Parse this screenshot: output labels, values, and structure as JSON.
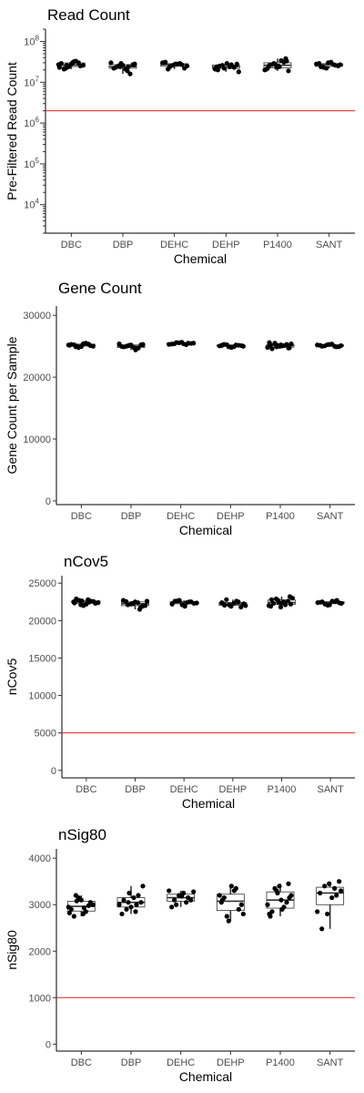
{
  "chart_data": [
    {
      "type": "boxplot",
      "title": "Read Count",
      "xlabel": "Chemical",
      "ylabel": "Pre-Filtered Read Count",
      "yscale": "log10",
      "ylim": [
        2000,
        200000000
      ],
      "yticks": [
        10000,
        100000,
        1000000,
        10000000,
        100000000
      ],
      "ytick_labels": [
        {
          "base": "10",
          "exp": "4"
        },
        {
          "base": "10",
          "exp": "5"
        },
        {
          "base": "10",
          "exp": "6"
        },
        {
          "base": "10",
          "exp": "7"
        },
        {
          "base": "10",
          "exp": "8"
        }
      ],
      "reference_line": 2000000,
      "reference_color": "#e0241b",
      "categories": [
        "DBC",
        "DBP",
        "DEHC",
        "DEHP",
        "P1400",
        "SANT"
      ],
      "values": [
        [
          27000000,
          22000000,
          31000000,
          25000000,
          29000000,
          24000000,
          33000000,
          26000000,
          21000000,
          28000000,
          30000000,
          23000000,
          26000000,
          32000000
        ],
        [
          24000000,
          19000000,
          28000000,
          23000000,
          26000000,
          16000000,
          30000000,
          25000000,
          21000000,
          27000000,
          22000000,
          29000000,
          24000000
        ],
        [
          27000000,
          30000000,
          24000000,
          28000000,
          22000000,
          31000000,
          26000000,
          29000000,
          25000000,
          21000000,
          28000000
        ],
        [
          24000000,
          22000000,
          27000000,
          18000000,
          25000000,
          29000000,
          23000000,
          21000000,
          26000000,
          24000000,
          28000000,
          20000000
        ],
        [
          25000000,
          38000000,
          21000000,
          29000000,
          34000000,
          19000000,
          26000000,
          23000000,
          31000000,
          20000000,
          27000000,
          24000000,
          33000000,
          22000000,
          28000000
        ],
        [
          27000000,
          24000000,
          30000000,
          26000000,
          28000000,
          23000000,
          31000000,
          25000000,
          29000000,
          22000000,
          27000000
        ]
      ]
    },
    {
      "type": "boxplot",
      "title": "Gene Count",
      "xlabel": "Chemical",
      "ylabel": "Gene Count per Sample",
      "ylim": [
        -600,
        31500
      ],
      "yticks": [
        0,
        10000,
        20000,
        30000
      ],
      "categories": [
        "DBC",
        "DBP",
        "DEHC",
        "DEHP",
        "P1400",
        "SANT"
      ],
      "values": [
        [
          25200,
          24900,
          25400,
          25100,
          25300,
          24800,
          25500,
          25000,
          25250,
          24950,
          25350,
          25150,
          25050,
          25450
        ],
        [
          25100,
          24400,
          25300,
          24900,
          25200,
          24700,
          25400,
          25000,
          24800,
          25250,
          24950,
          25150,
          24600
        ],
        [
          25500,
          25300,
          25600,
          25400,
          25450,
          25350,
          25550,
          25250,
          25500,
          25400,
          25650
        ],
        [
          25100,
          24900,
          25200,
          25000,
          25300,
          24800,
          25150,
          25050,
          25250,
          24950,
          25100,
          25200
        ],
        [
          25200,
          24700,
          25600,
          24900,
          25100,
          25400,
          24600,
          25000,
          25300,
          24800,
          25500,
          25050,
          24750,
          25250,
          25150
        ],
        [
          25100,
          25000,
          25300,
          24900,
          25200,
          25050,
          25350,
          24950,
          25150,
          25250,
          25000
        ]
      ]
    },
    {
      "type": "boxplot",
      "title": "nCov5",
      "xlabel": "Chemical",
      "ylabel": "nCov5",
      "ylim": [
        -1000,
        26000
      ],
      "yticks": [
        0,
        5000,
        10000,
        15000,
        20000,
        25000
      ],
      "reference_line": 5000,
      "reference_color": "#e0241b",
      "categories": [
        "DBC",
        "DBP",
        "DEHC",
        "DEHP",
        "P1400",
        "SANT"
      ],
      "values": [
        [
          22500,
          22100,
          22800,
          22300,
          22900,
          22000,
          22600,
          22400,
          22700,
          22200,
          22550,
          22350,
          22650,
          22450
        ],
        [
          22300,
          21500,
          22600,
          22100,
          22500,
          21900,
          22700,
          22200,
          22400,
          22000,
          22550,
          22250,
          21800
        ],
        [
          22500,
          22200,
          22700,
          22400,
          22300,
          22600,
          22100,
          22500,
          22350,
          22650,
          21900
        ],
        [
          22200,
          21900,
          22500,
          22000,
          22800,
          22300,
          21800,
          22400,
          22100,
          22600,
          22250,
          22050
        ],
        [
          22400,
          23200,
          21900,
          22700,
          22100,
          23000,
          22300,
          21800,
          22600,
          22000,
          22900,
          22500,
          22200,
          22800,
          22400
        ],
        [
          22300,
          22500,
          22100,
          22700,
          22400,
          22200,
          22600,
          22350,
          22450,
          22050,
          22550
        ]
      ]
    },
    {
      "type": "boxplot",
      "title": "nSig80",
      "xlabel": "Chemical",
      "ylabel": "nSig80",
      "ylim": [
        -150,
        4200
      ],
      "yticks": [
        0,
        1000,
        2000,
        3000,
        4000
      ],
      "reference_line": 1000,
      "reference_color": "#e0241b",
      "categories": [
        "DBC",
        "DBP",
        "DEHC",
        "DEHP",
        "P1400",
        "SANT"
      ],
      "values": [
        [
          2950,
          3200,
          2800,
          3050,
          2900,
          3150,
          2850,
          3000,
          2750,
          3100,
          2980,
          2820,
          3080,
          2930
        ],
        [
          3050,
          2850,
          3400,
          3100,
          2950,
          3200,
          3000,
          2900,
          3150,
          3050,
          2800,
          3250,
          3000
        ],
        [
          3150,
          3300,
          3000,
          3250,
          3100,
          2950,
          3200,
          3050,
          3280,
          3100,
          3180
        ],
        [
          3050,
          2650,
          3350,
          2800,
          3150,
          3400,
          2900,
          3200,
          2750,
          3300,
          3000,
          3100
        ],
        [
          3100,
          3450,
          2800,
          3300,
          2950,
          3200,
          2850,
          3400,
          3050,
          3000,
          3350,
          2900,
          3150,
          2750,
          3250
        ],
        [
          3300,
          2480,
          3450,
          3200,
          2850,
          3400,
          3150,
          3500,
          3250,
          2800,
          3350
        ]
      ]
    }
  ]
}
